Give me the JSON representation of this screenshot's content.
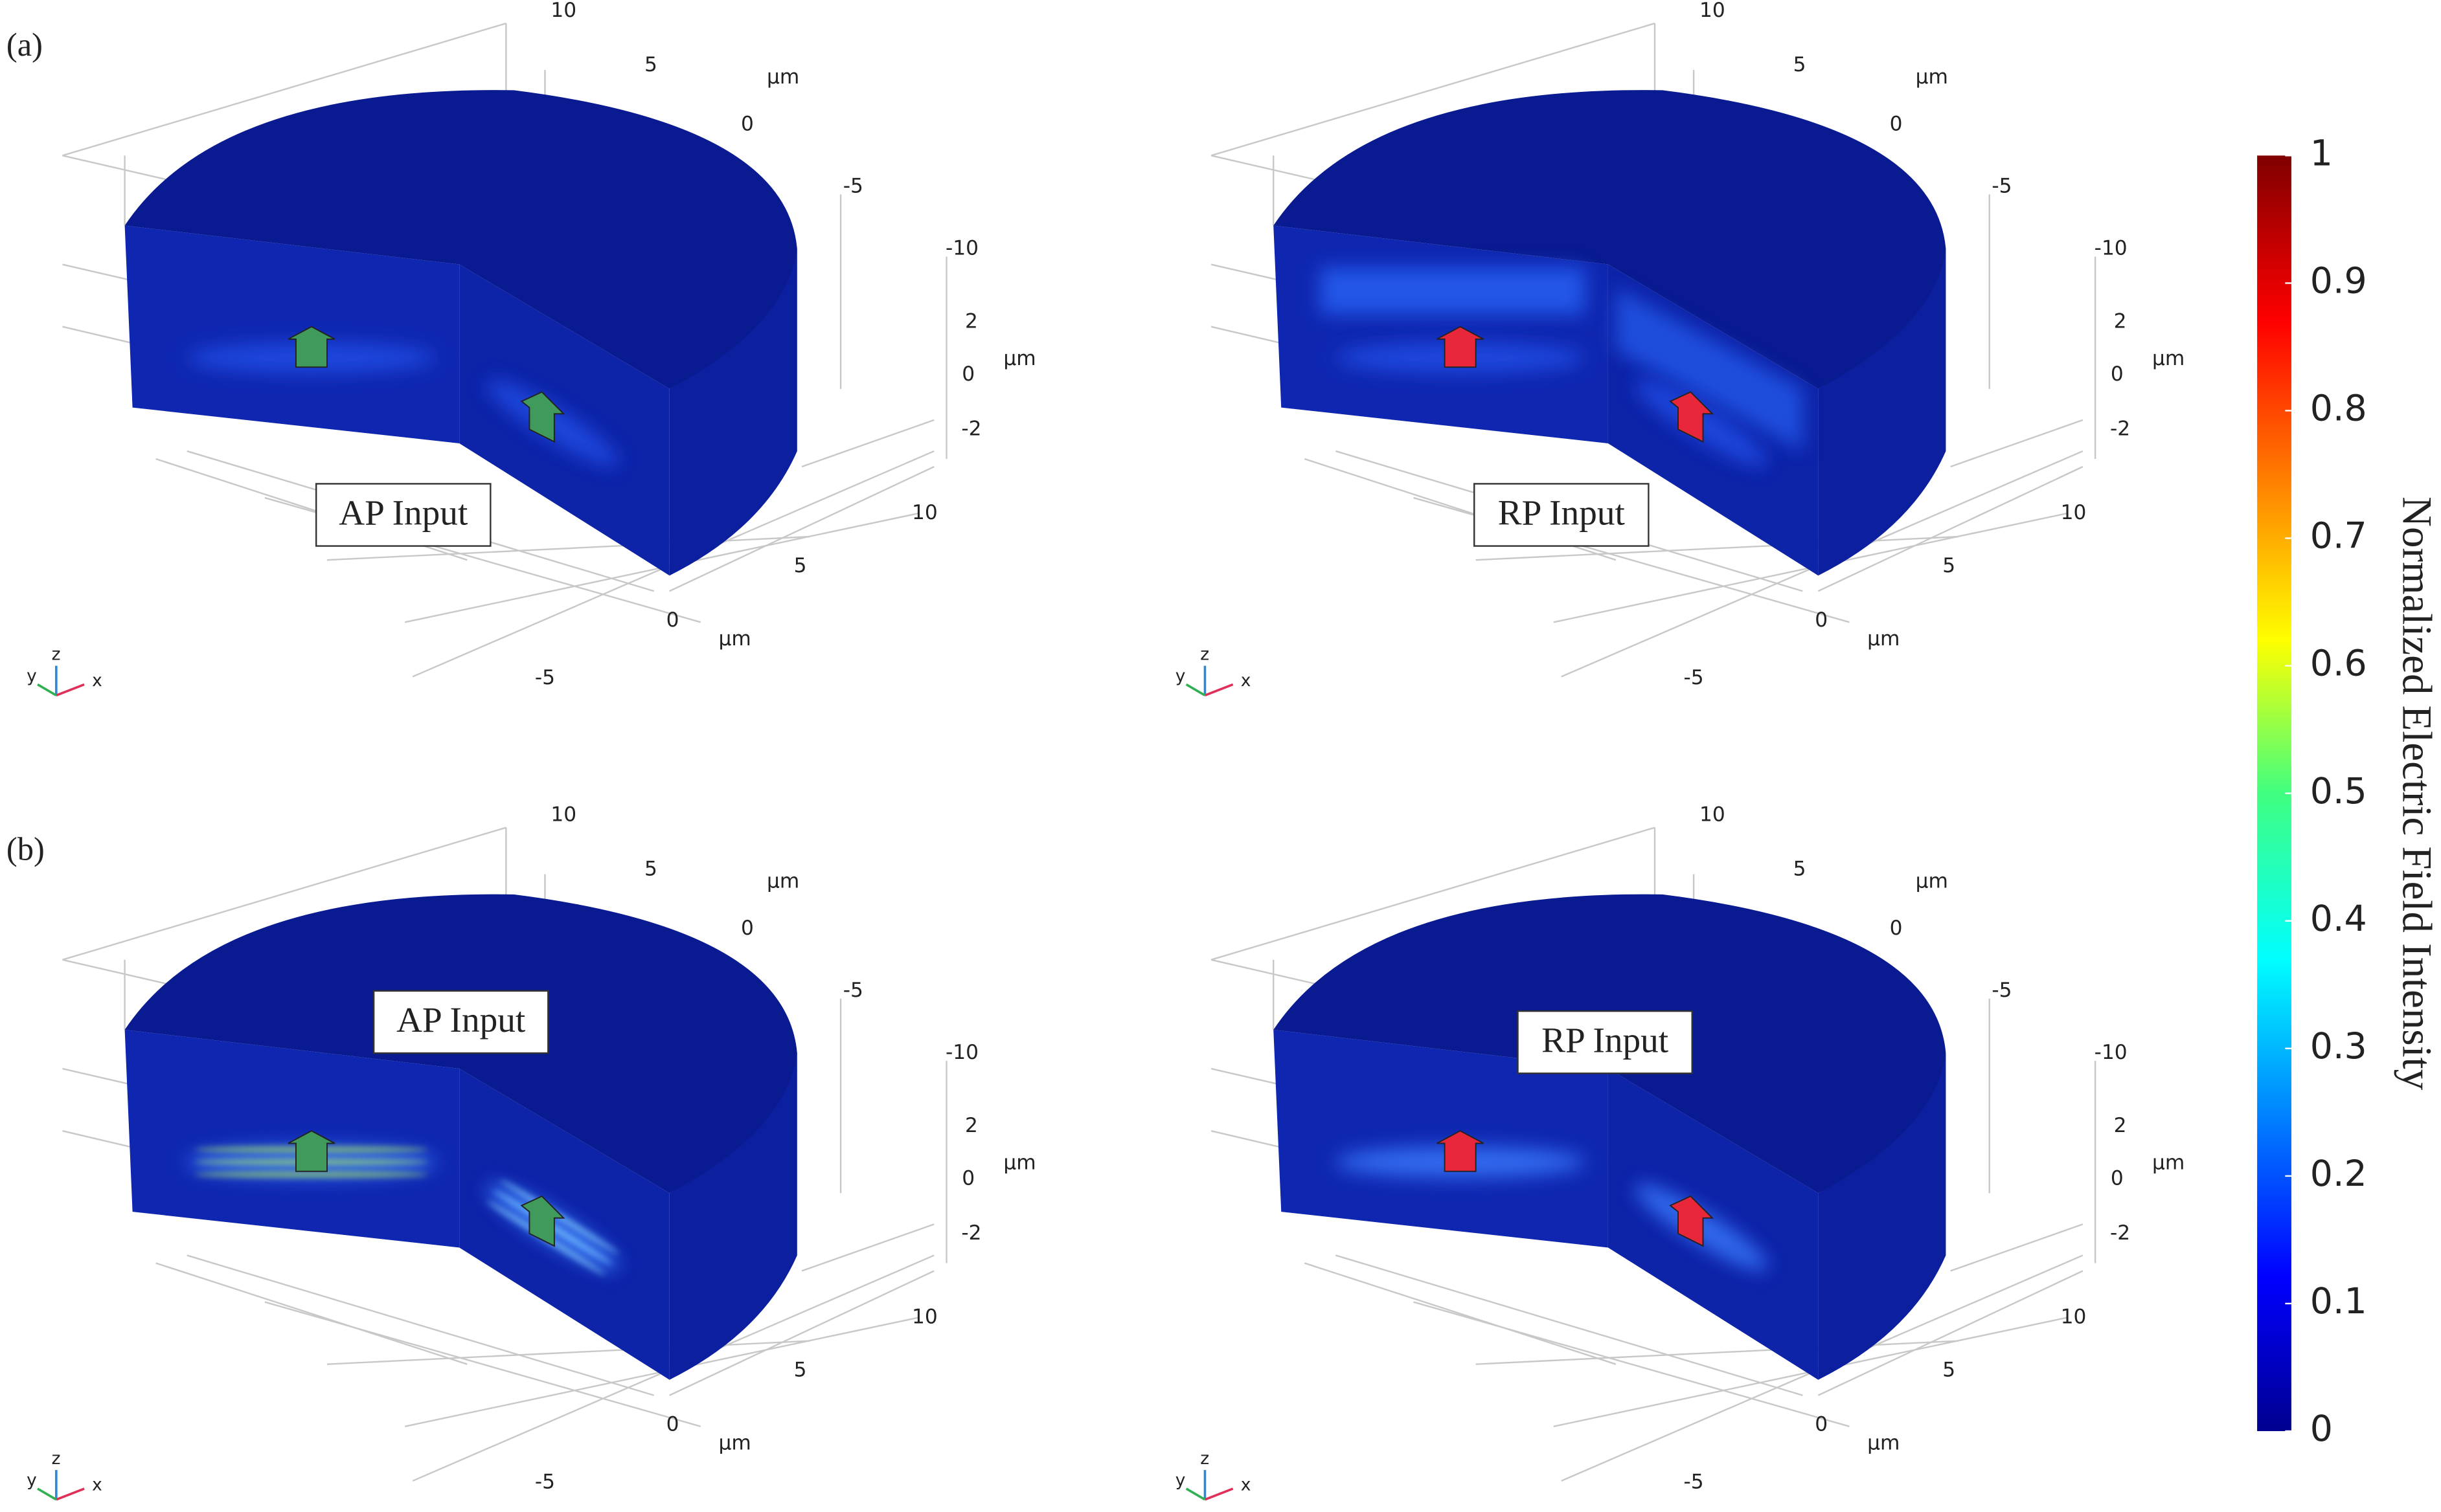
{
  "rows": [
    {
      "label": "(a)",
      "panels": [
        {
          "annotation": "AP Input"
        },
        {
          "annotation": "RP Input"
        }
      ]
    },
    {
      "label": "(b)",
      "panels": [
        {
          "annotation": "AP Input"
        },
        {
          "annotation": "RP Input"
        }
      ]
    }
  ],
  "axes": {
    "top_ticks": [
      10,
      5,
      0,
      -5,
      -10
    ],
    "z_ticks": [
      2,
      0,
      -2
    ],
    "bottom_ticks": [
      10,
      5,
      0,
      -5
    ],
    "unit": "μm",
    "triad": [
      "y",
      "z",
      "x"
    ]
  },
  "colorbar": {
    "label": "Normalized Electric Field Intensity",
    "lim": [
      0,
      1
    ],
    "ticks": [
      0,
      0.1,
      0.2,
      0.3,
      0.4,
      0.5,
      0.6,
      0.7,
      0.8,
      0.9,
      1
    ]
  }
}
